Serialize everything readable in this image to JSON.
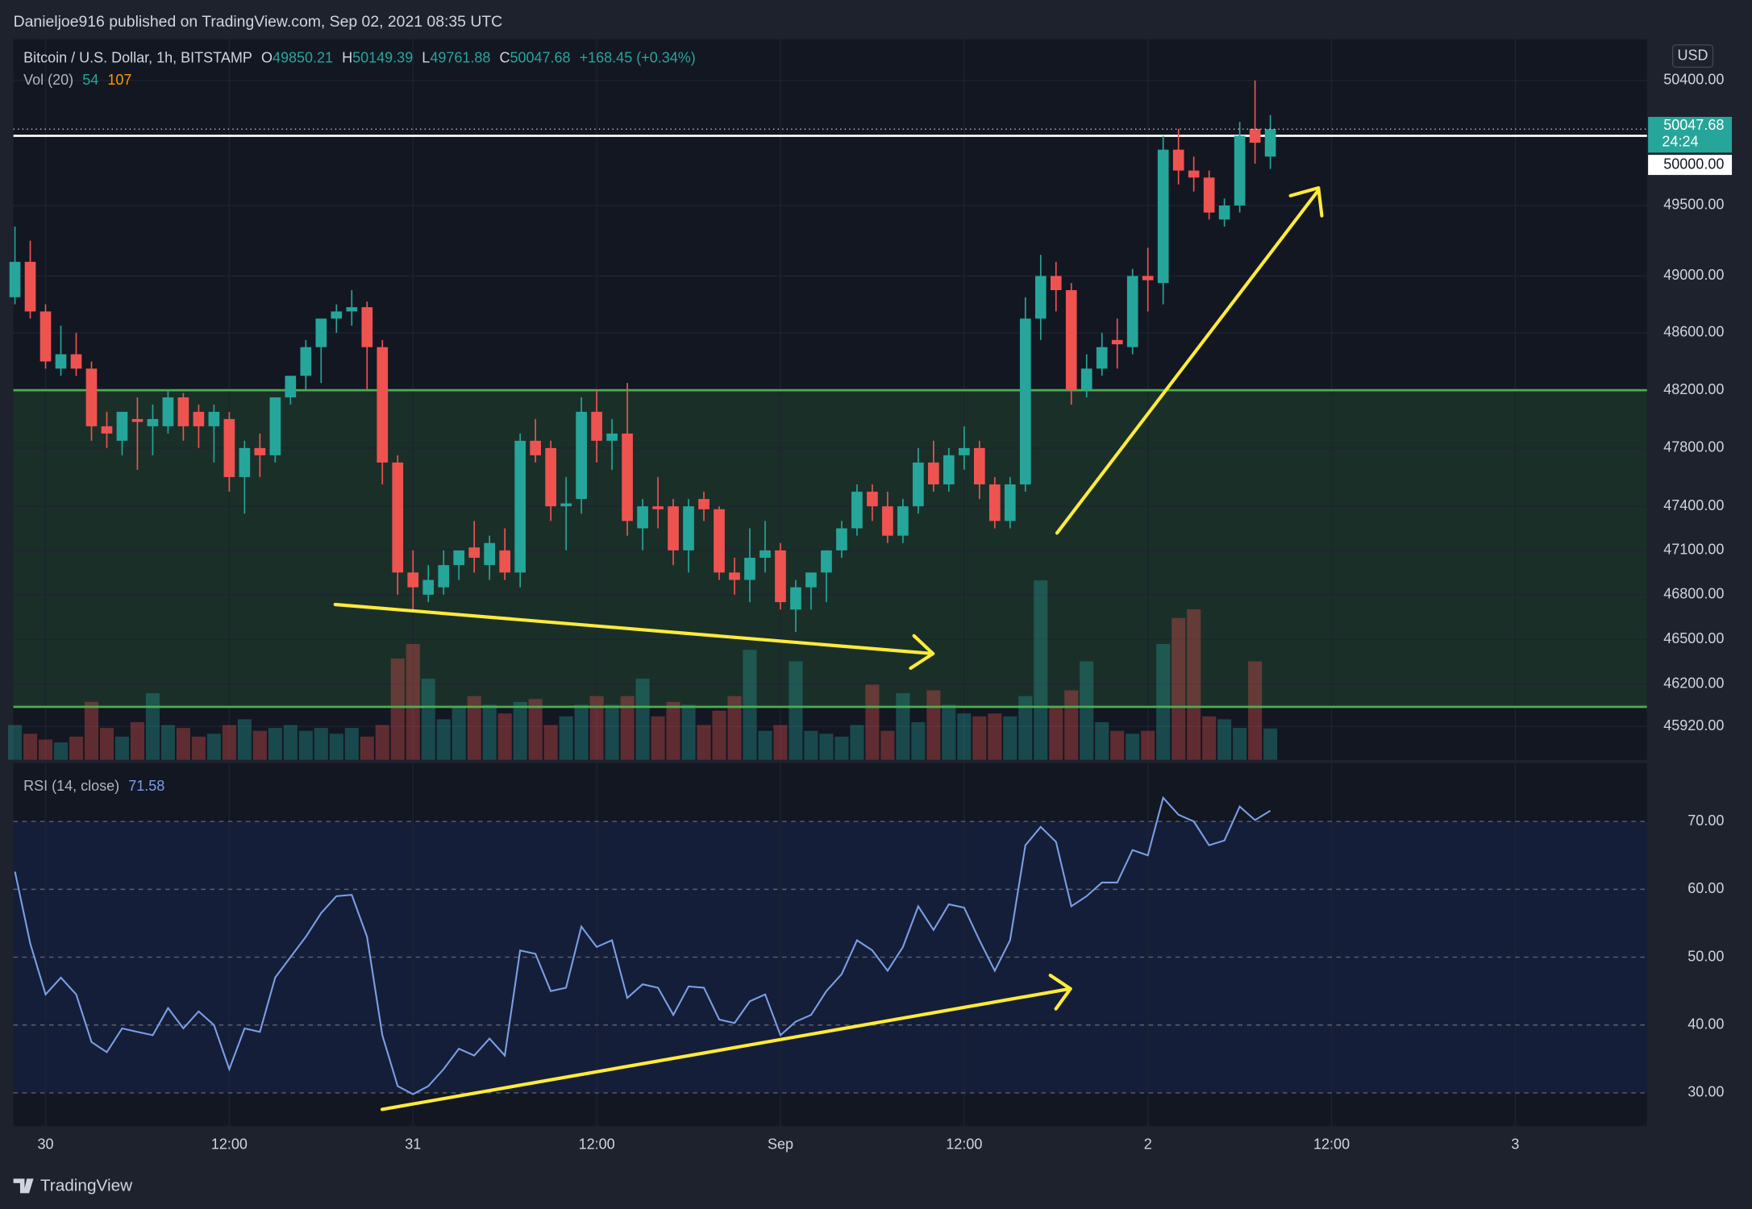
{
  "header": {
    "byline": "Danieljoe916 published on TradingView.com, Sep 02, 2021 08:35 UTC"
  },
  "footer": {
    "brand": "TradingView"
  },
  "chart_data": [
    {
      "type": "candlestick",
      "legend": {
        "symbol": "Bitcoin / U.S. Dollar, 1h, BITSTAMP",
        "fields": [
          "O",
          "H",
          "L",
          "C"
        ],
        "change": "+168.45 (+0.34%)"
      },
      "currency": "USD",
      "countdown": "24:24",
      "up_color": "#26a69a",
      "down_color": "#ef5350",
      "log_scale": true,
      "grid": true,
      "ylim": [
        45700,
        50700
      ],
      "yticks": [
        {
          "value": 50400,
          "label": "50400.00"
        },
        {
          "value": 49500,
          "label": "49500.00"
        },
        {
          "value": 49000,
          "label": "49000.00"
        },
        {
          "value": 48600,
          "label": "48600.00"
        },
        {
          "value": 48200,
          "label": "48200.00"
        },
        {
          "value": 47800,
          "label": "47800.00"
        },
        {
          "value": 47400,
          "label": "47400.00"
        },
        {
          "value": 47100,
          "label": "47100.00"
        },
        {
          "value": 46800,
          "label": "46800.00"
        },
        {
          "value": 46500,
          "label": "46500.00"
        },
        {
          "value": 46200,
          "label": "46200.00"
        },
        {
          "value": 45920,
          "label": "45920.00"
        }
      ],
      "xlim": [
        -0.1,
        106.6
      ],
      "xticks": [
        {
          "value": 2,
          "label": "30"
        },
        {
          "value": 14,
          "label": "12:00"
        },
        {
          "value": 26,
          "label": "31"
        },
        {
          "value": 38,
          "label": "12:00"
        },
        {
          "value": 50,
          "label": "Sep"
        },
        {
          "value": 62,
          "label": "12:00"
        },
        {
          "value": 74,
          "label": "2"
        },
        {
          "value": 86,
          "label": "12:00"
        },
        {
          "value": 98,
          "label": "3"
        }
      ],
      "levels": [
        {
          "value": 50000,
          "label": "50000.00",
          "color": "#ffffff"
        },
        {
          "value": 48200,
          "color": "#4caf50"
        },
        {
          "value": 46050,
          "color": "#4caf50"
        }
      ],
      "zone_color": "rgba(76,175,80,0.16)",
      "candles": [
        [
          48850,
          49350,
          48800,
          49100
        ],
        [
          49100,
          49250,
          48700,
          48750
        ],
        [
          48750,
          48800,
          48350,
          48400
        ],
        [
          48350,
          48650,
          48300,
          48450
        ],
        [
          48450,
          48600,
          48300,
          48350
        ],
        [
          48350,
          48400,
          47850,
          47950
        ],
        [
          47950,
          48050,
          47800,
          47900
        ],
        [
          47850,
          48050,
          47750,
          48050
        ],
        [
          48000,
          48150,
          47650,
          47980
        ],
        [
          47950,
          48100,
          47750,
          48000
        ],
        [
          47950,
          48200,
          47900,
          48150
        ],
        [
          48150,
          48180,
          47850,
          47950
        ],
        [
          48050,
          48100,
          47800,
          47950
        ],
        [
          47950,
          48100,
          47700,
          48050
        ],
        [
          48000,
          48050,
          47500,
          47600
        ],
        [
          47600,
          47850,
          47350,
          47800
        ],
        [
          47800,
          47900,
          47600,
          47750
        ],
        [
          47750,
          48100,
          47700,
          48150
        ],
        [
          48150,
          48300,
          48100,
          48300
        ],
        [
          48300,
          48550,
          48200,
          48500
        ],
        [
          48500,
          48650,
          48250,
          48700
        ],
        [
          48700,
          48800,
          48600,
          48750
        ],
        [
          48750,
          48900,
          48650,
          48780
        ],
        [
          48780,
          48820,
          48200,
          48500
        ],
        [
          48500,
          48550,
          47550,
          47700
        ],
        [
          47700,
          47750,
          46800,
          46950
        ],
        [
          46950,
          47100,
          46700,
          46850
        ],
        [
          46800,
          47000,
          46750,
          46900
        ],
        [
          46850,
          47100,
          46800,
          47000
        ],
        [
          47000,
          47100,
          46900,
          47100
        ],
        [
          47120,
          47300,
          46950,
          47050
        ],
        [
          47000,
          47200,
          46900,
          47150
        ],
        [
          47100,
          47250,
          46900,
          46950
        ],
        [
          46950,
          47900,
          46850,
          47850
        ],
        [
          47850,
          48000,
          47700,
          47750
        ],
        [
          47800,
          47850,
          47300,
          47400
        ],
        [
          47400,
          47600,
          47100,
          47420
        ],
        [
          47450,
          48150,
          47350,
          48050
        ],
        [
          48050,
          48200,
          47700,
          47850
        ],
        [
          47850,
          48000,
          47650,
          47900
        ],
        [
          47900,
          48250,
          47200,
          47300
        ],
        [
          47250,
          47450,
          47100,
          47400
        ],
        [
          47400,
          47600,
          47250,
          47380
        ],
        [
          47400,
          47450,
          47000,
          47100
        ],
        [
          47100,
          47450,
          46950,
          47400
        ],
        [
          47450,
          47500,
          47300,
          47380
        ],
        [
          47380,
          47400,
          46900,
          46950
        ],
        [
          46950,
          47050,
          46800,
          46900
        ],
        [
          46900,
          47250,
          46750,
          47050
        ],
        [
          47050,
          47300,
          46950,
          47100
        ],
        [
          47100,
          47150,
          46700,
          46750
        ],
        [
          46700,
          46900,
          46550,
          46850
        ],
        [
          46850,
          46950,
          46700,
          46950
        ],
        [
          46950,
          47100,
          46750,
          47100
        ],
        [
          47100,
          47300,
          47050,
          47250
        ],
        [
          47250,
          47550,
          47200,
          47500
        ],
        [
          47500,
          47550,
          47300,
          47400
        ],
        [
          47400,
          47500,
          47150,
          47200
        ],
        [
          47200,
          47450,
          47150,
          47400
        ],
        [
          47400,
          47800,
          47350,
          47700
        ],
        [
          47700,
          47850,
          47500,
          47550
        ],
        [
          47550,
          47800,
          47500,
          47750
        ],
        [
          47750,
          47950,
          47650,
          47800
        ],
        [
          47800,
          47850,
          47450,
          47550
        ],
        [
          47550,
          47600,
          47250,
          47300
        ],
        [
          47300,
          47600,
          47250,
          47550
        ],
        [
          47550,
          48850,
          47500,
          48700
        ],
        [
          48700,
          49150,
          48550,
          49000
        ],
        [
          49000,
          49100,
          48750,
          48900
        ],
        [
          48900,
          48950,
          48100,
          48200
        ],
        [
          48200,
          48450,
          48150,
          48350
        ],
        [
          48350,
          48600,
          48300,
          48500
        ],
        [
          48550,
          48700,
          48350,
          48520
        ],
        [
          48500,
          49050,
          48450,
          49000
        ],
        [
          49000,
          49200,
          48750,
          48970
        ],
        [
          48950,
          50000,
          48800,
          49900
        ],
        [
          49900,
          50050,
          49650,
          49750
        ],
        [
          49750,
          49850,
          49600,
          49700
        ],
        [
          49700,
          49750,
          49400,
          49450
        ],
        [
          49400,
          49550,
          49350,
          49500
        ],
        [
          49500,
          50100,
          49450,
          50000
        ],
        [
          50050,
          50400,
          49800,
          49950
        ],
        [
          49850.21,
          50149.39,
          49761.88,
          50047.68
        ]
      ],
      "volume_label": "Vol (20)",
      "volume_ma": 107,
      "volume_ylim": [
        0,
        1245
      ],
      "volumes": [
        60,
        45,
        35,
        30,
        40,
        100,
        55,
        40,
        65,
        115,
        60,
        55,
        40,
        45,
        60,
        70,
        50,
        55,
        60,
        50,
        55,
        45,
        55,
        40,
        60,
        175,
        200,
        140,
        70,
        90,
        110,
        95,
        80,
        100,
        105,
        60,
        75,
        95,
        110,
        95,
        110,
        140,
        75,
        100,
        95,
        60,
        85,
        110,
        190,
        50,
        60,
        170,
        50,
        45,
        40,
        60,
        130,
        50,
        115,
        65,
        120,
        95,
        80,
        75,
        80,
        75,
        110,
        310,
        90,
        120,
        170,
        65,
        50,
        45,
        50,
        200,
        245,
        260,
        75,
        70,
        55,
        170,
        54
      ]
    },
    {
      "type": "line",
      "title": "RSI (14, close)",
      "color": "#7b9ee6",
      "band": [
        30,
        70
      ],
      "band_color": "rgba(41,98,255,0.10)",
      "ylim": [
        25.1,
        78.6
      ],
      "yticks": [
        {
          "value": 70,
          "label": "70.00"
        },
        {
          "value": 60,
          "label": "60.00"
        },
        {
          "value": 50,
          "label": "50.00"
        },
        {
          "value": 40,
          "label": "40.00"
        },
        {
          "value": 30,
          "label": "30.00"
        }
      ],
      "values": [
        62.6,
        52,
        44.5,
        47,
        44.5,
        37.5,
        36,
        39.5,
        39,
        38.5,
        42.5,
        39.5,
        42,
        40,
        33.5,
        39.5,
        39,
        47,
        50,
        53,
        56.5,
        59,
        59.2,
        53,
        38.5,
        31,
        29.8,
        31,
        33.5,
        36.5,
        35.5,
        38,
        35.5,
        51,
        50.5,
        45,
        45.5,
        54.5,
        51.5,
        52.5,
        44,
        46,
        45.5,
        41.5,
        45.7,
        45.5,
        40.8,
        40.3,
        43.5,
        44.5,
        38.5,
        40.5,
        41.5,
        45,
        47.5,
        52.5,
        51,
        48,
        51.5,
        57.5,
        54,
        57.8,
        57.3,
        52.5,
        48,
        52.5,
        66.5,
        69.2,
        67,
        57.5,
        59,
        61,
        61,
        65.8,
        65,
        73.5,
        71,
        70,
        66.5,
        67.2,
        72.2,
        70.2,
        71.58
      ]
    }
  ]
}
